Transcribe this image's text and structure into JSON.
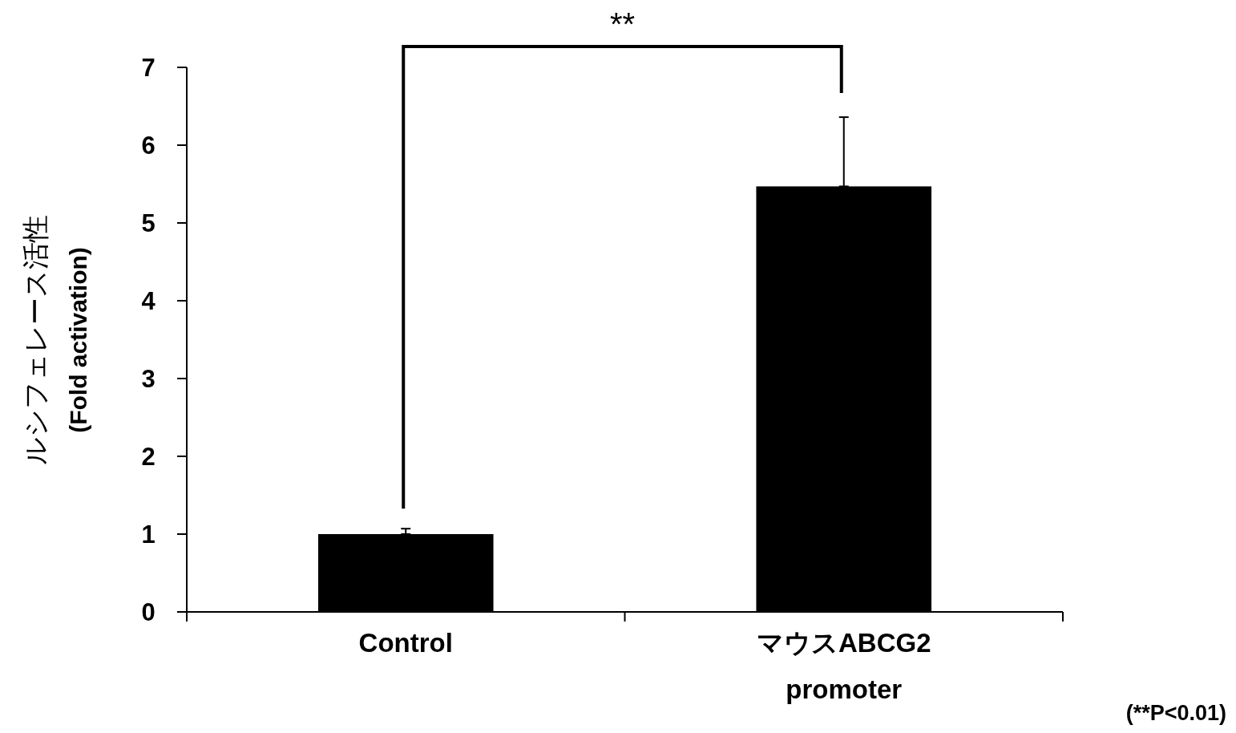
{
  "chart_data": {
    "type": "bar",
    "categories": [
      "Control",
      "マウスABCG2\npromoter"
    ],
    "values": [
      1,
      5.47
    ],
    "color": "#000000",
    "errors": [
      [
        1,
        1.07
      ],
      [
        5.47,
        6.36
      ]
    ],
    "ylim": [
      0,
      7
    ],
    "yticks": [
      0,
      1,
      2,
      3,
      4,
      5,
      6,
      7
    ],
    "ylabel": "ルシフェレース活性\n(Fold activation)",
    "grid": false,
    "annotations": [
      "**",
      "(**P<0.01)"
    ]
  }
}
